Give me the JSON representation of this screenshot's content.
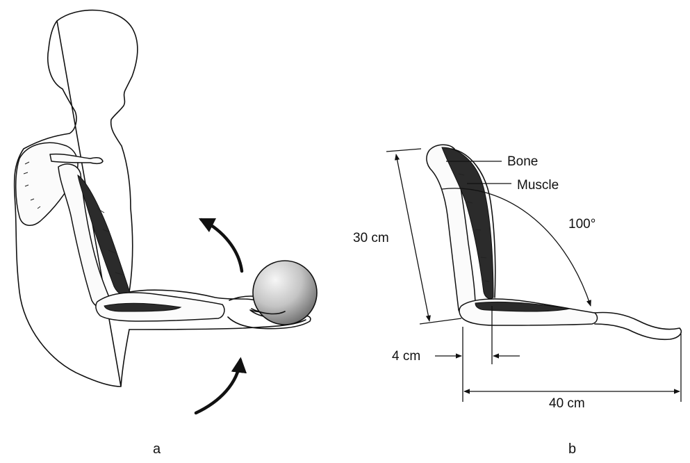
{
  "panels": {
    "a": {
      "label": "a"
    },
    "b": {
      "label": "b"
    }
  },
  "labels": {
    "bone": "Bone",
    "muscle": "Muscle",
    "angle": "100°",
    "upper_arm_length": "30 cm",
    "muscle_offset": "4 cm",
    "forearm_length": "40 cm"
  },
  "colors": {
    "ink": "#111111",
    "ball_light": "#f4f4f4",
    "ball_dark": "#7a7a7a"
  }
}
